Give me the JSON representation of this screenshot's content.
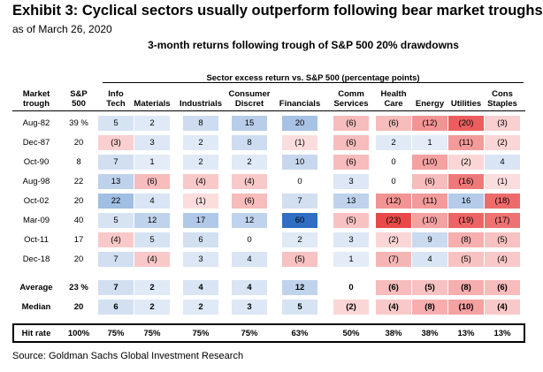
{
  "title": "Exhibit 3: Cyclical sectors usually outperform following bear market troughs",
  "subtitle": "as of March 26, 2020",
  "source": "Source: Goldman Sachs Global Investment Research",
  "chart_data": {
    "type": "table",
    "title": "3-month returns following trough of S&P 500 20% drawdowns",
    "group_header": "Sector excess return vs. S&P 500 (percentage points)",
    "row_header": "Market trough",
    "sp_header": "S&P 500",
    "sectors": [
      "Info Tech",
      "Materials",
      "Industrials",
      "Consumer Discret",
      "Financials",
      "Comm Services",
      "Health Care",
      "Energy",
      "Utilities",
      "Cons Staples"
    ],
    "rows": [
      {
        "label": "Aug-82",
        "sp": "39 %",
        "values": [
          5,
          2,
          8,
          15,
          20,
          -6,
          -6,
          -12,
          -20,
          -3
        ]
      },
      {
        "label": "Dec-87",
        "sp": "20",
        "values": [
          -3,
          3,
          2,
          8,
          -1,
          -6,
          2,
          1,
          -11,
          -2
        ]
      },
      {
        "label": "Oct-90",
        "sp": "8",
        "values": [
          7,
          1,
          2,
          2,
          10,
          -6,
          0,
          -10,
          -2,
          4
        ]
      },
      {
        "label": "Aug-98",
        "sp": "22",
        "values": [
          13,
          -6,
          -4,
          -4,
          0,
          3,
          0,
          -6,
          -16,
          -1
        ]
      },
      {
        "label": "Oct-02",
        "sp": "20",
        "values": [
          22,
          4,
          -1,
          -6,
          7,
          13,
          -12,
          -11,
          16,
          -18
        ]
      },
      {
        "label": "Mar-09",
        "sp": "40",
        "values": [
          5,
          12,
          17,
          12,
          60,
          -5,
          -23,
          -10,
          -19,
          -17
        ]
      },
      {
        "label": "Oct-11",
        "sp": "17",
        "values": [
          -4,
          5,
          6,
          0,
          2,
          3,
          -2,
          9,
          -8,
          -5
        ]
      },
      {
        "label": "Dec-18",
        "sp": "20",
        "values": [
          7,
          -4,
          3,
          4,
          -5,
          1,
          -7,
          4,
          -5,
          -4
        ]
      }
    ],
    "summary_rows": [
      {
        "label": "Average",
        "sp": "23 %",
        "values": [
          7,
          2,
          4,
          4,
          12,
          0,
          -6,
          -5,
          -8,
          -6
        ]
      },
      {
        "label": "Median",
        "sp": "20",
        "values": [
          6,
          2,
          2,
          3,
          5,
          -2,
          -4,
          -8,
          -10,
          -4
        ]
      }
    ],
    "hit_rate": {
      "label": "Hit rate",
      "sp": "100%",
      "values": [
        "75%",
        "75%",
        "75%",
        "75%",
        "63%",
        "50%",
        "38%",
        "38%",
        "13%",
        "13%"
      ]
    },
    "colors": {
      "positive": "#2f6ec2",
      "negative": "#e83a3a"
    }
  }
}
